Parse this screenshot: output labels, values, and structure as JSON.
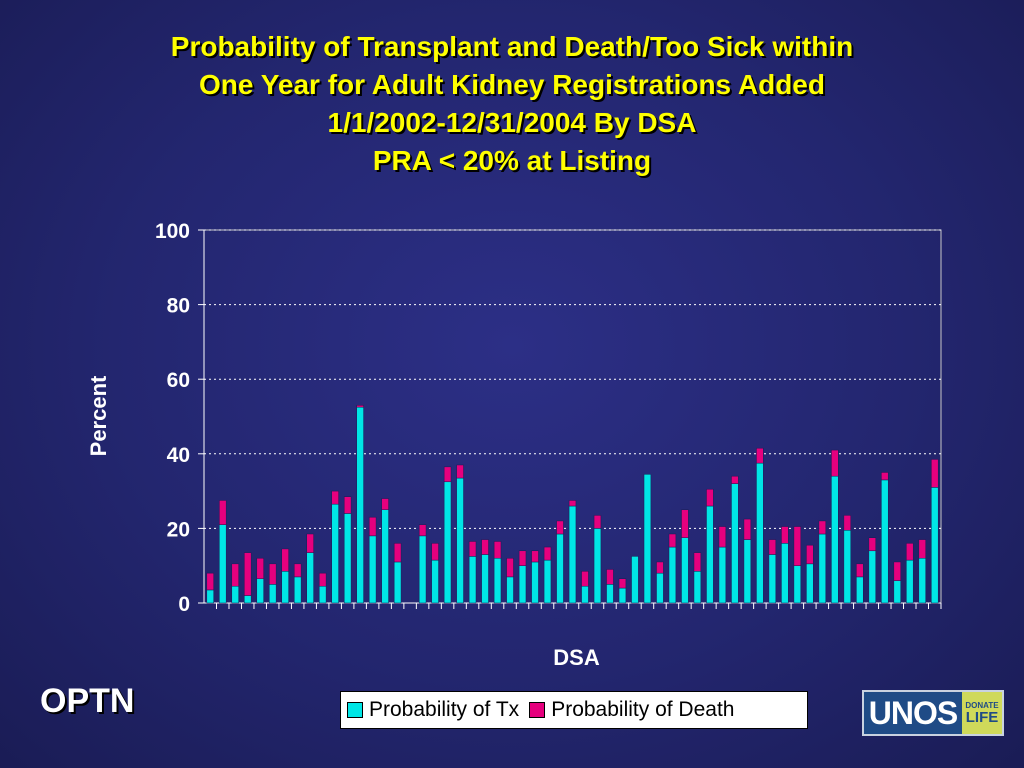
{
  "title_lines": [
    "Probability of Transplant and Death/Too Sick within",
    "One Year for Adult Kidney Registrations Added",
    "1/1/2002-12/31/2004 By DSA",
    "PRA < 20% at Listing"
  ],
  "branding": {
    "optn": "OPTN",
    "unos": "UNOS",
    "donate": "DONATE",
    "life": "LIFE"
  },
  "colors": {
    "tx": "#00e6e6",
    "death": "#e6007e",
    "grid": "#ffffff"
  },
  "chart_data": {
    "type": "bar",
    "stacked": true,
    "xlabel": "DSA",
    "ylabel": "Percent",
    "ylim": [
      0,
      100
    ],
    "yticks": [
      0,
      20,
      40,
      60,
      80,
      100
    ],
    "grid": "horizontal dotted",
    "legend_position": "bottom",
    "series": [
      {
        "name": "Probability of Tx",
        "values": [
          3.5,
          21,
          4.5,
          2,
          6.5,
          5,
          8.5,
          7,
          13.5,
          4.5,
          26.5,
          24,
          52.5,
          18,
          25,
          11,
          0,
          18,
          11.5,
          32.5,
          33.5,
          12.5,
          13,
          12,
          7,
          10,
          11,
          11.5,
          18.5,
          26,
          4.5,
          20,
          5,
          4,
          12.5,
          34.5,
          8,
          15,
          17.5,
          8.5,
          26,
          15,
          32,
          17,
          37.5,
          13,
          16,
          10,
          10.5,
          18.5,
          34,
          19.5,
          7,
          14,
          33,
          6,
          11.5,
          12,
          31
        ]
      },
      {
        "name": "Probability of Death",
        "values": [
          4.5,
          6.5,
          6,
          11.5,
          5.5,
          5.5,
          6,
          3.5,
          5,
          3.5,
          3.5,
          4.5,
          0.5,
          5,
          3,
          5,
          0,
          3,
          4.5,
          4,
          3.5,
          4,
          4,
          4.5,
          5,
          4,
          3,
          3.5,
          3.5,
          1.5,
          4,
          3.5,
          4,
          2.5,
          0,
          0,
          3,
          3.5,
          7.5,
          5,
          4.5,
          5.5,
          2,
          5.5,
          4,
          4,
          4.5,
          10.5,
          5,
          3.5,
          7,
          4,
          3.5,
          3.5,
          2,
          5,
          4.5,
          5,
          7.5
        ]
      }
    ]
  }
}
